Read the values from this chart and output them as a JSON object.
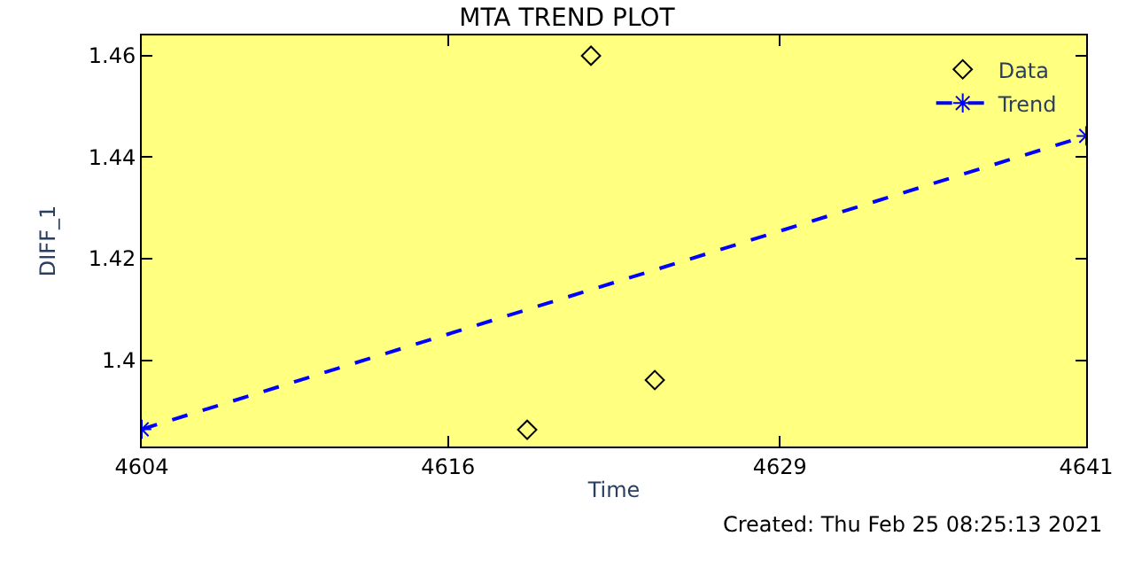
{
  "chart_data": {
    "type": "scatter",
    "title": "MTA TREND PLOT",
    "xlabel": "Time",
    "ylabel": "DIFF_1",
    "x": [
      4619.1,
      4621.6,
      4624.1
    ],
    "series": [
      {
        "name": "Data",
        "color": "#000000",
        "marker": "diamond",
        "values": [
          1.3863,
          1.46,
          1.3961
        ]
      },
      {
        "name": "Trend",
        "type": "line",
        "color": "#0000ff",
        "line_style": "dashed",
        "marker": "cross",
        "x": [
          4604,
          4641
        ],
        "values": [
          1.3864,
          1.4442
        ]
      }
    ],
    "xlim": [
      4604,
      4641
    ],
    "xticks": [
      4604,
      4616,
      4629,
      4641
    ],
    "ylim": [
      1.383,
      1.464
    ],
    "yticks": [
      1.4,
      1.42,
      1.44,
      1.46
    ],
    "grid": false,
    "legend": "top right",
    "annotations": [
      "Created: Thu Feb 25 08:25:13 2021"
    ]
  }
}
